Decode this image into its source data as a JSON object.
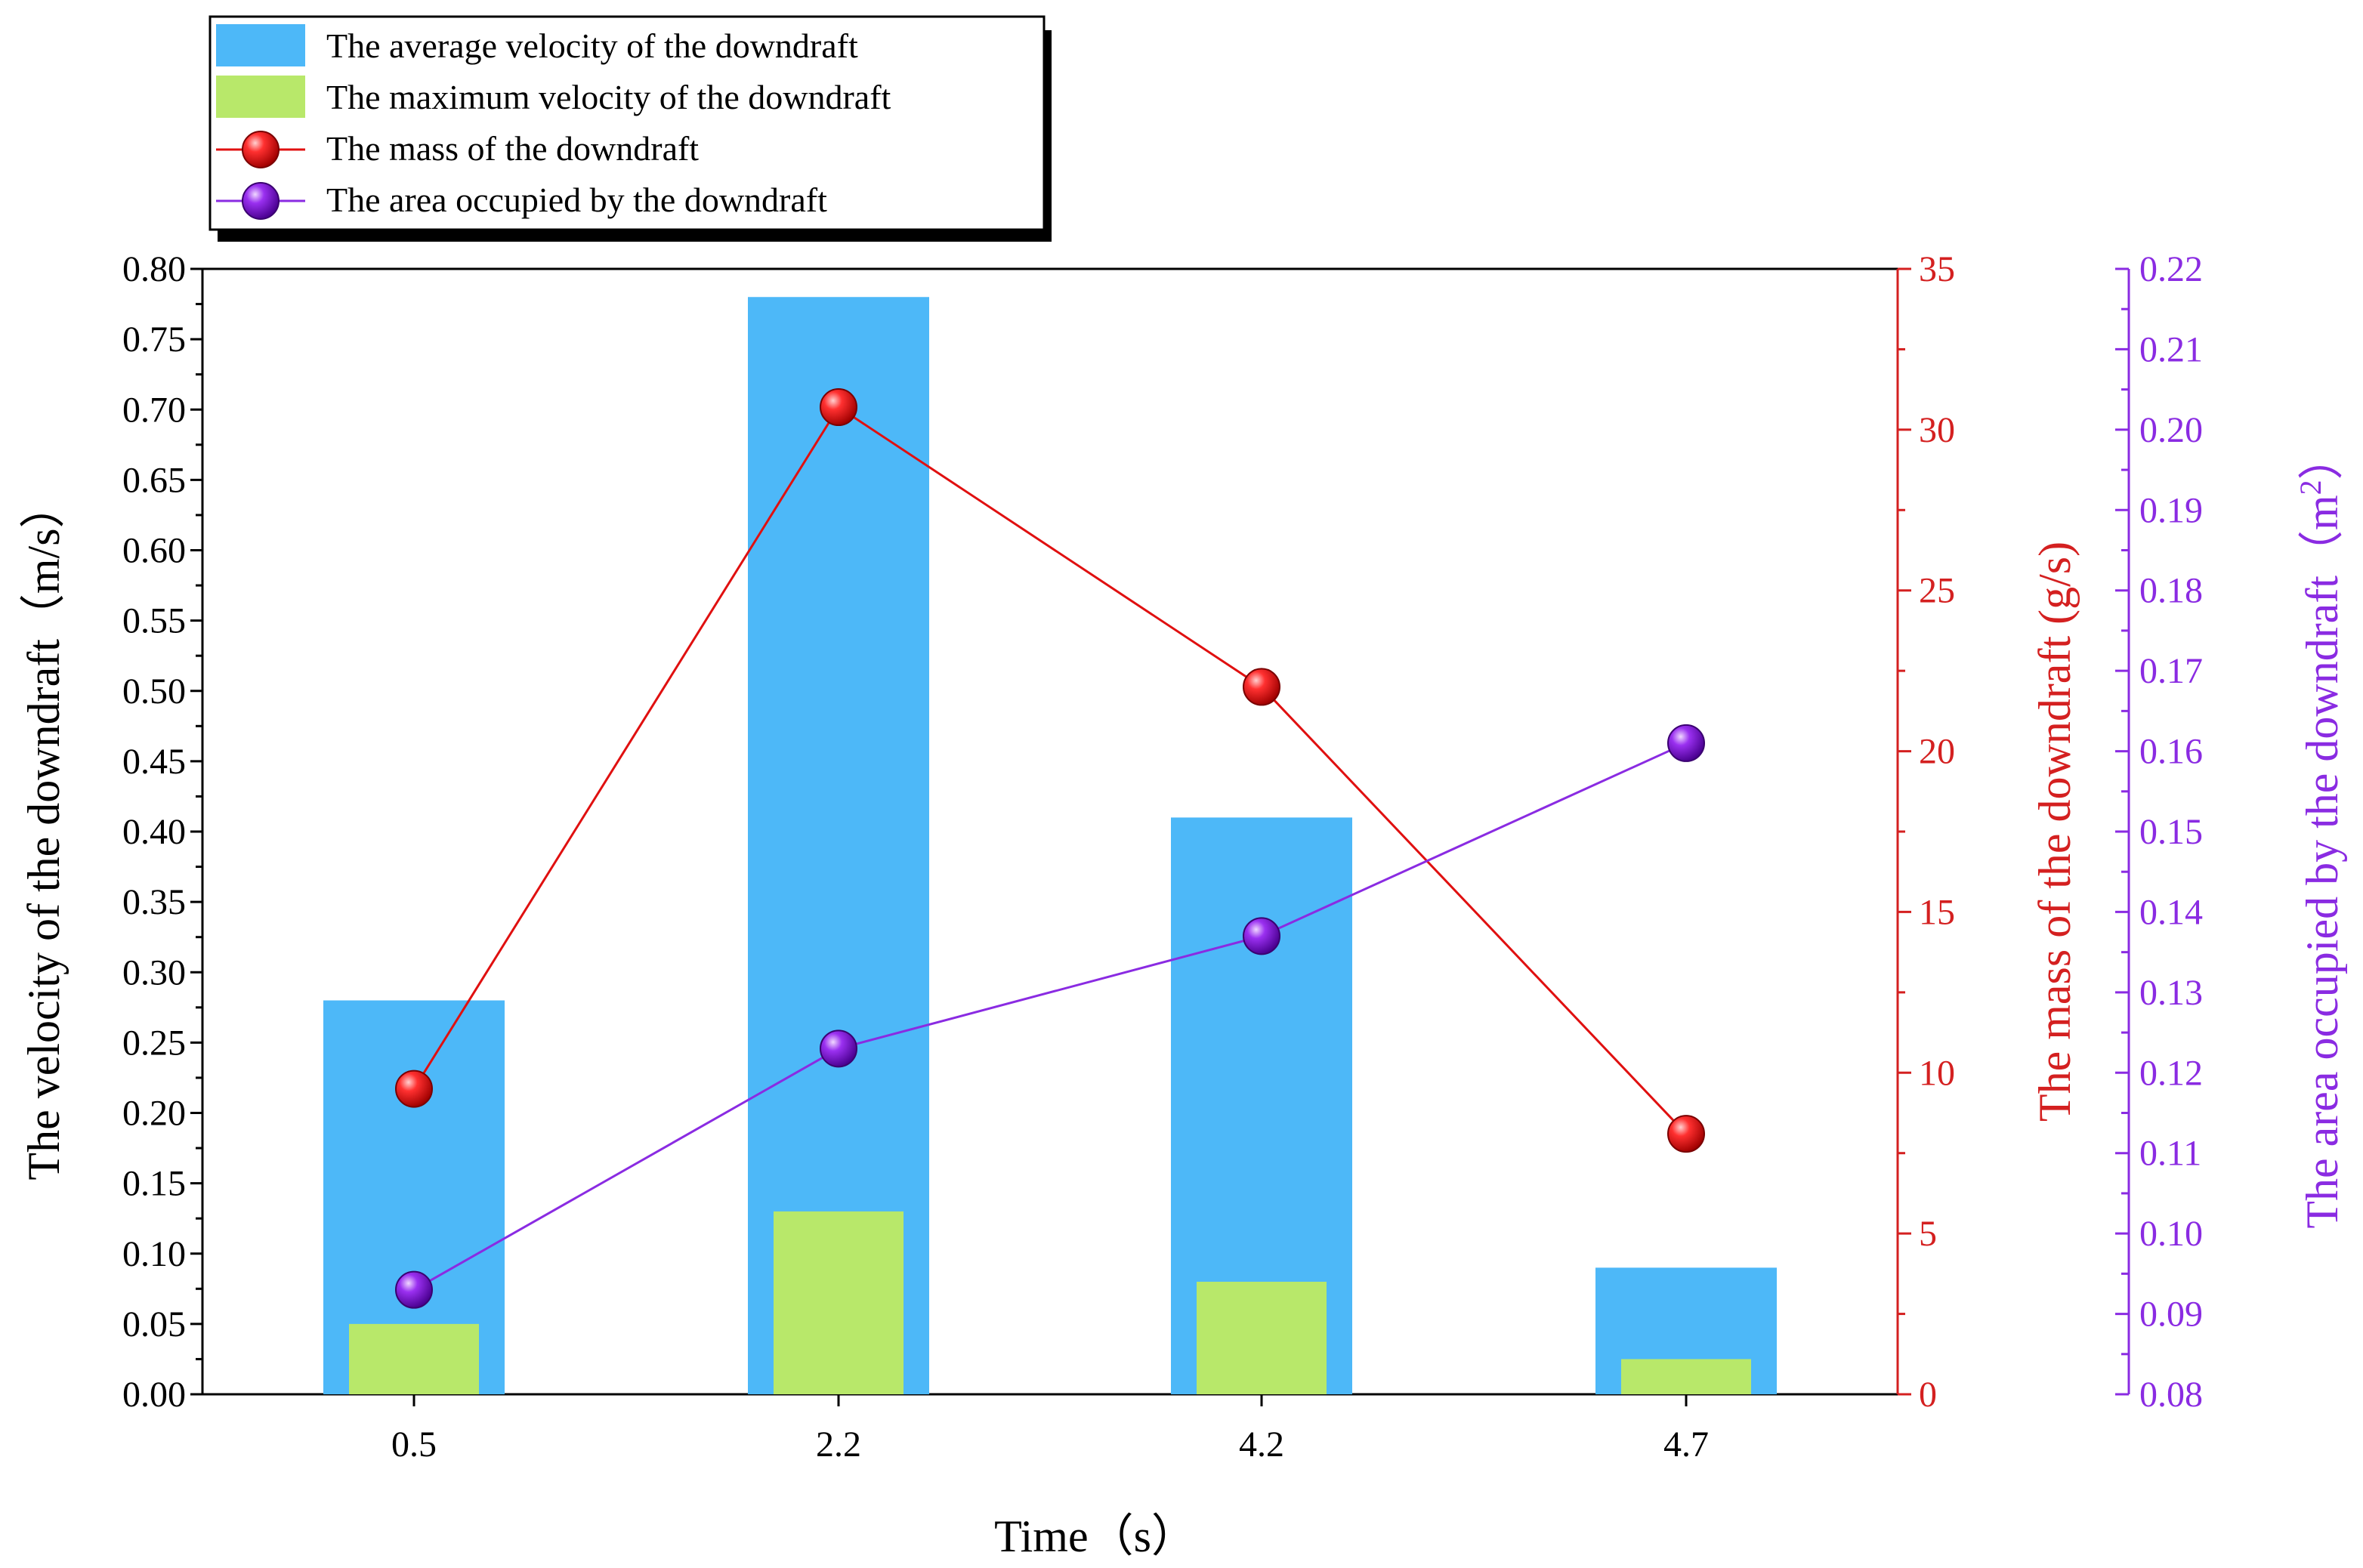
{
  "chart_data": {
    "type": "bar",
    "categories": [
      "0.5",
      "2.2",
      "4.2",
      "4.7"
    ],
    "xlabel": "Time（s）",
    "series": [
      {
        "name": "The average velocity of the downdraft",
        "kind": "bar",
        "axis": "left",
        "color": "#4db8f8",
        "values": [
          0.28,
          0.78,
          0.41,
          0.09
        ]
      },
      {
        "name": "The maximum velocity of the downdraft",
        "kind": "bar",
        "axis": "left",
        "color": "#b8e86a",
        "values": [
          0.05,
          0.13,
          0.08,
          0.025
        ]
      },
      {
        "name": "The mass of the downdraft",
        "kind": "line",
        "axis": "mass",
        "color": "#e01010",
        "values": [
          9.5,
          30.7,
          22.0,
          8.1
        ]
      },
      {
        "name": "The area occupied by the downdraft",
        "kind": "line",
        "axis": "area",
        "color": "#8a2be2",
        "values": [
          0.093,
          0.123,
          0.137,
          0.161
        ]
      }
    ],
    "axes": {
      "left": {
        "label": "The velocity of the downdraft（m/s）",
        "ylim": [
          0,
          0.8
        ],
        "ticks": [
          "0.00",
          "0.05",
          "0.10",
          "0.15",
          "0.20",
          "0.25",
          "0.30",
          "0.35",
          "0.40",
          "0.45",
          "0.50",
          "0.55",
          "0.60",
          "0.65",
          "0.70",
          "0.75",
          "0.80"
        ],
        "color": "#000000"
      },
      "mass": {
        "label": "The mass of the downdraft (g/s)",
        "ylim": [
          0,
          35
        ],
        "ticks": [
          "0",
          "5",
          "10",
          "15",
          "20",
          "25",
          "30",
          "35"
        ],
        "color": "#d42020"
      },
      "area": {
        "label": "The area occupied by the downdraft（m",
        "label_sup": "2",
        "label_close": "）",
        "ylim": [
          0.08,
          0.22
        ],
        "ticks": [
          "0.08",
          "0.09",
          "0.10",
          "0.11",
          "0.12",
          "0.13",
          "0.14",
          "0.15",
          "0.16",
          "0.17",
          "0.18",
          "0.19",
          "0.20",
          "0.21",
          "0.22"
        ],
        "color": "#8a2be2"
      }
    },
    "legend": {
      "position": "top-left",
      "entries": [
        "The average velocity of the downdraft",
        "The maximum velocity of the downdraft",
        "The mass of the downdraft",
        "The area occupied by the downdraft"
      ]
    }
  }
}
